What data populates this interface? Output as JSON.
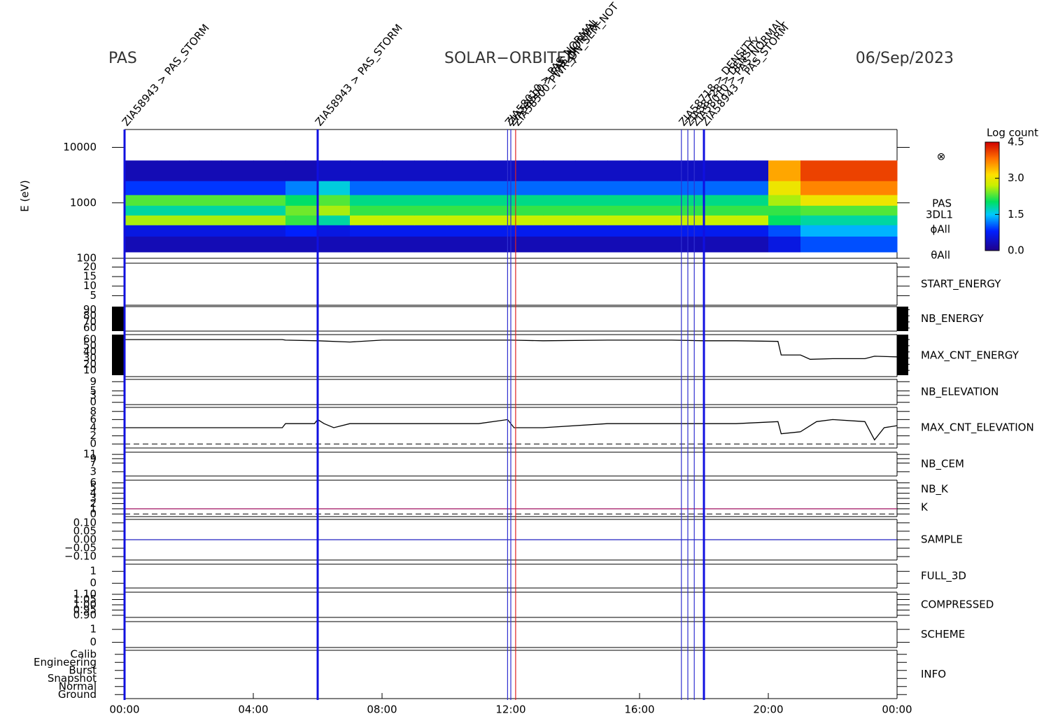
{
  "header": {
    "left": "PAS",
    "center": "SOLAR−ORBITER",
    "right": "06/Sep/2023",
    "ylabel": "E (eV)"
  },
  "xaxis": {
    "xlim": [
      0,
      24
    ],
    "xticks": [
      {
        "value": 0,
        "label": "00:00"
      },
      {
        "value": 4,
        "label": "04:00"
      },
      {
        "value": 8,
        "label": "08:00"
      },
      {
        "value": 12,
        "label": "12:00"
      },
      {
        "value": 16,
        "label": "16:00"
      },
      {
        "value": 20,
        "label": "20:00"
      },
      {
        "value": 24,
        "label": "00:00"
      }
    ]
  },
  "events": {
    "x": [
      0,
      6,
      11.9,
      12.0,
      12.15,
      17.3,
      17.5,
      17.7,
      18
    ],
    "labels": [
      "ZIA58943 > PAS_STORM",
      "ZIA58943 > PAS_STORM",
      "ZIA58010 > PAS_NORMAL",
      "ZIA58500 > PAS_NORMAL",
      "ZIA58500_PWR_ON_SEM_NOT",
      "ZIA58718 > DENSITY",
      "ZIA58728 > DENSITY",
      "ZIA58010 > PAS_NORMAL",
      "ZIA58943 > PAS_STORM"
    ],
    "colors": [
      "#1010e0",
      "#1010e0",
      "#3030d0",
      "#3030d0",
      "#e02020",
      "#3030d0",
      "#3030d0",
      "#3030d0",
      "#1010e0"
    ]
  },
  "chart_data": [
    {
      "type": "heatmap",
      "log_scale": true,
      "ylim": [
        100,
        21000
      ],
      "yticks": [
        100,
        1000,
        10000
      ],
      "x_bins": [
        0,
        1,
        2,
        3,
        4,
        5,
        6,
        7,
        8,
        9,
        10,
        11,
        12,
        13,
        14,
        15,
        16,
        17,
        18,
        19,
        20,
        21,
        22,
        23,
        24
      ],
      "y_bins": [
        130,
        250,
        400,
        600,
        900,
        1400,
        2500,
        5800
      ],
      "values": [
        [
          0.3,
          0.3,
          0.3,
          0.3,
          0.3,
          0.3,
          0.3,
          0.3,
          0.3,
          0.3,
          0.3,
          0.3,
          0.3,
          0.3,
          0.3,
          0.3,
          0.3,
          0.3,
          0.3,
          0.3,
          0.6,
          1.0,
          1.0,
          1.0
        ],
        [
          0.6,
          0.6,
          0.6,
          0.6,
          0.6,
          0.8,
          0.6,
          0.7,
          0.7,
          0.7,
          0.7,
          0.7,
          0.7,
          0.7,
          0.7,
          0.7,
          0.7,
          0.7,
          0.7,
          0.7,
          1.0,
          1.4,
          1.4,
          1.4
        ],
        [
          2.6,
          2.6,
          2.6,
          2.6,
          2.6,
          2.2,
          1.8,
          2.7,
          2.7,
          2.7,
          2.7,
          2.7,
          2.7,
          2.7,
          2.7,
          2.7,
          2.7,
          2.7,
          2.7,
          2.7,
          2.0,
          1.8,
          1.8,
          1.8
        ],
        [
          1.8,
          1.8,
          1.8,
          1.8,
          1.8,
          2.4,
          2.6,
          2.2,
          2.2,
          2.2,
          2.2,
          2.2,
          2.2,
          2.2,
          2.2,
          2.2,
          2.2,
          2.2,
          2.2,
          2.2,
          2.2,
          2.3,
          2.3,
          2.3
        ],
        [
          2.3,
          2.3,
          2.3,
          2.3,
          2.3,
          2.0,
          2.3,
          1.9,
          1.9,
          1.9,
          1.9,
          1.9,
          1.9,
          1.9,
          1.9,
          1.9,
          1.9,
          1.9,
          1.9,
          1.9,
          2.6,
          3.0,
          3.0,
          3.0
        ],
        [
          0.9,
          0.9,
          0.9,
          0.9,
          0.9,
          1.2,
          1.6,
          1.1,
          1.1,
          1.1,
          1.1,
          1.1,
          1.1,
          1.1,
          1.1,
          1.1,
          1.1,
          1.1,
          1.1,
          1.1,
          3.0,
          3.7,
          3.7,
          3.7
        ],
        [
          0.3,
          0.3,
          0.3,
          0.3,
          0.3,
          0.3,
          0.4,
          0.4,
          0.4,
          0.4,
          0.4,
          0.4,
          0.4,
          0.4,
          0.4,
          0.4,
          0.4,
          0.4,
          0.4,
          0.4,
          3.5,
          4.1,
          4.1,
          4.1
        ]
      ],
      "zlim": [
        0,
        4.5
      ],
      "colorbar_title": "Log count",
      "zticks": [
        {
          "value": 0,
          "label": "0.0"
        },
        {
          "value": 1.5,
          "label": "1.5"
        },
        {
          "value": 3,
          "label": "3.0"
        },
        {
          "value": 4.5,
          "label": "4.5"
        }
      ],
      "labels": [
        "⊗",
        "PAS",
        "3DL1",
        "ϕAll",
        "θAll"
      ],
      "label_colors": [
        "#000",
        "#000",
        "#000",
        "#000",
        "#000"
      ]
    },
    {
      "type": "line",
      "ylim": [
        0,
        22
      ],
      "yticks": [
        5,
        10,
        15,
        20
      ],
      "labels": [
        "START_ENERGY"
      ],
      "label_colors": [
        "#000"
      ]
    },
    {
      "type": "line",
      "ylim": [
        55,
        95
      ],
      "yticks": [
        60,
        70,
        80,
        90
      ],
      "labels": [
        "NB_ENERGY"
      ],
      "label_colors": [
        "#2020c0"
      ]
    },
    {
      "type": "line",
      "ylim": [
        0,
        68
      ],
      "yticks": [
        10,
        20,
        30,
        40,
        50,
        60
      ],
      "labels": [
        "MAX_CNT_ENERGY"
      ],
      "label_colors": [
        "#000"
      ],
      "x": [
        0,
        4.9,
        5,
        6,
        7,
        8,
        10,
        12,
        13,
        15,
        17,
        18,
        19,
        20.3,
        20.4,
        21,
        21.3,
        22,
        23,
        23.3,
        24
      ],
      "values": [
        60,
        60,
        59,
        58,
        56,
        59,
        59,
        59,
        58,
        59,
        59,
        58,
        58,
        57,
        35,
        35,
        28,
        29,
        29,
        33,
        32
      ],
      "color": "#000"
    },
    {
      "type": "line",
      "ylim": [
        -1,
        10
      ],
      "yticks": [
        0,
        3,
        5,
        9
      ],
      "labels": [
        "NB_ELEVATION"
      ],
      "label_colors": [
        "#2020c0"
      ]
    },
    {
      "type": "line",
      "ylim": [
        -1,
        9
      ],
      "yticks": [
        0,
        2,
        4,
        6,
        8
      ],
      "labels": [
        "MAX_CNT_ELEVATION"
      ],
      "label_colors": [
        "#000"
      ],
      "dashed_line": 0,
      "x": [
        0,
        4.9,
        5,
        5.9,
        6,
        6.2,
        6.5,
        7,
        8,
        10,
        11,
        11.9,
        12.1,
        13,
        15,
        17,
        19,
        20.3,
        20.4,
        21,
        21.5,
        22,
        23,
        23.3,
        23.6,
        24
      ],
      "values": [
        4,
        4,
        5,
        5,
        6,
        5,
        4,
        5,
        5,
        5,
        5,
        6,
        4,
        4,
        5,
        5,
        5,
        5.5,
        2.5,
        3,
        5.5,
        6,
        5.5,
        1,
        4,
        4.5
      ],
      "color": "#000"
    },
    {
      "type": "line",
      "ylim": [
        1,
        12
      ],
      "yticks": [
        3,
        7,
        9,
        11
      ],
      "labels": [
        "NB_CEM"
      ],
      "label_colors": [
        "#2020c0"
      ]
    },
    {
      "type": "line",
      "ylim": [
        -0.5,
        6.5
      ],
      "yticks": [
        0,
        1,
        2,
        3,
        4,
        5,
        6
      ],
      "labels": [
        "NB_K",
        "K"
      ],
      "label_colors": [
        "#e02020",
        "#2020c0"
      ],
      "dashed_line": 0,
      "x": [
        0,
        24
      ],
      "values": [
        1,
        1
      ],
      "color": "#a01060"
    },
    {
      "type": "line",
      "ylim": [
        -0.12,
        0.12
      ],
      "yticks": [
        {
          "value": 0.1,
          "label": "0.10"
        },
        {
          "value": 0.05,
          "label": "0.05"
        },
        {
          "value": 0,
          "label": "0.00"
        },
        {
          "value": -0.05,
          "label": "−0.05"
        },
        {
          "value": -0.1,
          "label": "−0.10"
        }
      ],
      "labels": [
        "SAMPLE"
      ],
      "label_colors": [
        "#2020c0"
      ],
      "x": [
        0,
        24
      ],
      "values": [
        0,
        0
      ],
      "color": "#2020c0"
    },
    {
      "type": "line",
      "ylim": [
        -0.4,
        1.6
      ],
      "yticks": [
        0,
        1
      ],
      "labels": [
        "FULL_3D"
      ],
      "label_colors": [
        "#2020c0"
      ]
    },
    {
      "type": "line",
      "ylim": [
        0.88,
        1.12
      ],
      "yticks": [
        {
          "value": 1.1,
          "label": "1.10"
        },
        {
          "value": 1.05,
          "label": "1.05"
        },
        {
          "value": 1,
          "label": "1.00"
        },
        {
          "value": 0.95,
          "label": "0.95"
        },
        {
          "value": 0.9,
          "label": "0.90"
        }
      ],
      "labels": [
        "COMPRESSED"
      ],
      "label_colors": [
        "#000"
      ]
    },
    {
      "type": "line",
      "ylim": [
        -0.4,
        1.6
      ],
      "yticks": [
        0,
        1
      ],
      "labels": [
        "SCHEME"
      ],
      "label_colors": [
        "#000"
      ]
    },
    {
      "type": "category",
      "categories": [
        "Ground",
        "Normal",
        "Snapshot",
        "Burst",
        "Engineering",
        "Calib"
      ],
      "labels": [
        "INFO"
      ],
      "label_colors": [
        "#000"
      ]
    }
  ]
}
